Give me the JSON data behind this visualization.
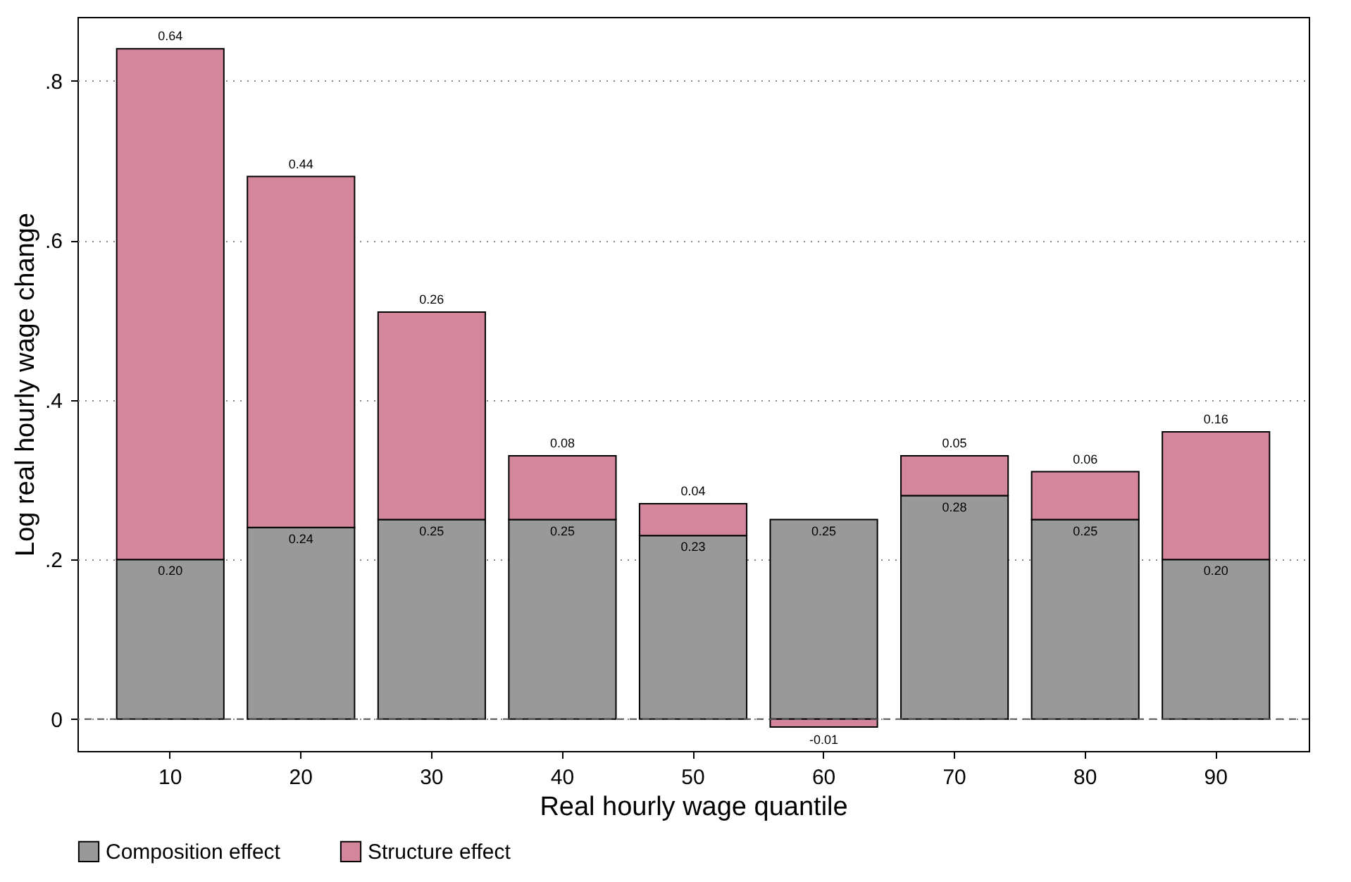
{
  "chart_data": {
    "type": "bar",
    "stacked": true,
    "xlabel": "Real hourly wage quantile",
    "ylabel": "Log real hourly wage change",
    "categories": [
      "10",
      "20",
      "30",
      "40",
      "50",
      "60",
      "70",
      "80",
      "90"
    ],
    "series": [
      {
        "name": "Composition effect",
        "color": "#999999",
        "values": [
          0.2,
          0.24,
          0.25,
          0.25,
          0.23,
          0.25,
          0.28,
          0.25,
          0.2
        ],
        "value_labels": [
          "0.20",
          "0.24",
          "0.25",
          "0.25",
          "0.23",
          "0.25",
          "0.28",
          "0.25",
          "0.20"
        ]
      },
      {
        "name": "Structure effect",
        "color": "#d4869c",
        "values": [
          0.64,
          0.44,
          0.26,
          0.08,
          0.04,
          -0.01,
          0.05,
          0.06,
          0.16
        ],
        "value_labels": [
          "0.64",
          "0.44",
          "0.26",
          "0.08",
          "0.04",
          "-0.01",
          "0.05",
          "0.06",
          "0.16"
        ]
      }
    ],
    "ylim": [
      -0.04,
      0.88
    ],
    "yticks": [
      {
        "value": 0,
        "label": "0"
      },
      {
        "value": 0.2,
        "label": ".2"
      },
      {
        "value": 0.4,
        "label": ".4"
      },
      {
        "value": 0.6,
        "label": ".6"
      },
      {
        "value": 0.8,
        "label": ".8"
      }
    ],
    "grid": "y",
    "legend": "bottom",
    "ref_lines": [
      {
        "axis": "y",
        "value": 0,
        "color": "#555555",
        "line_style": "dashed"
      }
    ]
  }
}
